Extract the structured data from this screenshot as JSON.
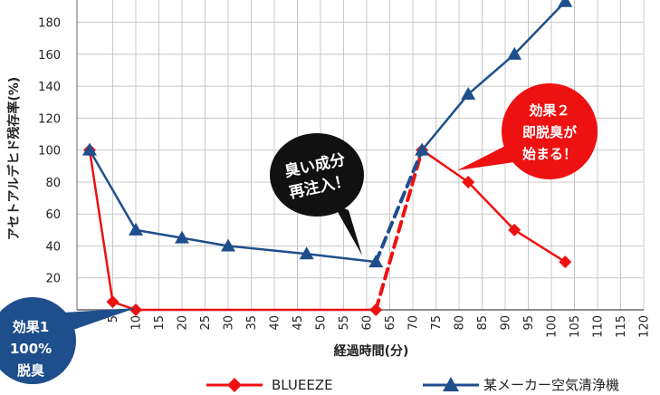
{
  "chart_data": {
    "type": "line",
    "xlabel": "経過時間(分)",
    "ylabel": "アセトアルデヒド残存率(%)",
    "xlim": [
      0,
      120
    ],
    "ylim": [
      0,
      190
    ],
    "x_ticks": [
      0,
      5,
      10,
      15,
      20,
      25,
      30,
      35,
      40,
      45,
      50,
      55,
      60,
      65,
      70,
      75,
      80,
      85,
      90,
      95,
      100,
      105,
      110,
      115,
      120
    ],
    "y_ticks": [
      0,
      20,
      40,
      60,
      80,
      100,
      120,
      140,
      160,
      180
    ],
    "grid": true,
    "legend_position": "bottom",
    "series": [
      {
        "name": "BLUEEZE",
        "color": "#ee1111",
        "marker": "diamond",
        "points": [
          [
            0,
            100
          ],
          [
            5,
            5
          ],
          [
            10,
            0
          ],
          [
            62,
            0
          ],
          [
            72,
            100
          ],
          [
            82,
            80
          ],
          [
            92,
            50
          ],
          [
            103,
            30
          ]
        ],
        "dashed_segment": [
          [
            62,
            0
          ],
          [
            72,
            100
          ]
        ]
      },
      {
        "name": "某メーカー空気清浄機",
        "color": "#1f4e8c",
        "marker": "triangle",
        "points": [
          [
            0,
            100
          ],
          [
            10,
            50
          ],
          [
            20,
            45
          ],
          [
            30,
            40
          ],
          [
            47,
            35
          ],
          [
            62,
            30
          ],
          [
            72,
            100
          ],
          [
            82,
            135
          ],
          [
            92,
            160
          ],
          [
            103,
            193
          ]
        ],
        "dashed_segment": [
          [
            62,
            30
          ],
          [
            72,
            100
          ]
        ]
      }
    ],
    "annotations": [
      {
        "id": "reinjection",
        "lines": [
          "臭い成分",
          "再注入！"
        ],
        "color": "#000000"
      },
      {
        "id": "effect2",
        "lines": [
          "効果２",
          "即脱臭が",
          "始まる！"
        ],
        "color": "#ee1111"
      },
      {
        "id": "effect1",
        "lines": [
          "効果1",
          "100%",
          "脱臭"
        ],
        "color": "#1f4e8c"
      }
    ]
  }
}
